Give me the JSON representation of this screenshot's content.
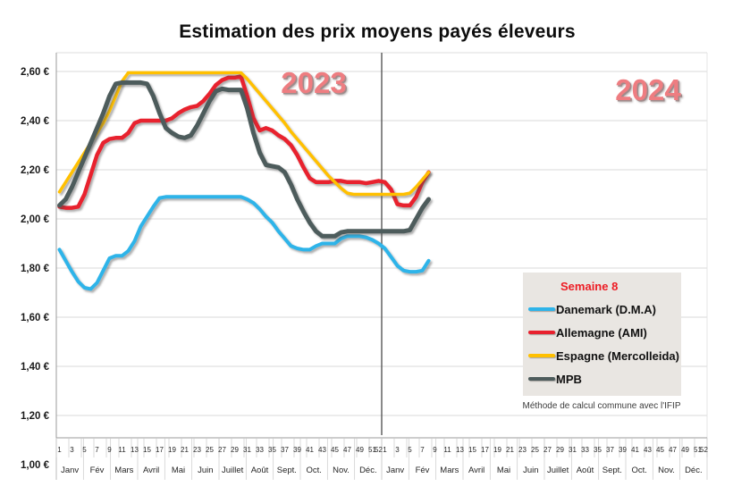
{
  "title": "Estimation des prix moyens payés éleveurs",
  "year_labels": [
    "2023",
    "2024"
  ],
  "legend": {
    "header": "Semaine 8",
    "items": [
      {
        "label": "Danemark (D.M.A)",
        "color": "#2fb4e9"
      },
      {
        "label": "Allemagne (AMI)",
        "color": "#e8212e"
      },
      {
        "label": "Espagne (Mercolleida)",
        "color": "#ffc000"
      },
      {
        "label": "MPB",
        "color": "#4e5c5c"
      }
    ]
  },
  "footnote": "Méthode de calcul commune avec l'IFIP",
  "chart_data": {
    "type": "line",
    "title": "Estimation des prix moyens payés éleveurs",
    "x_unit": "semaine",
    "ylim": [
      1.0,
      2.6
    ],
    "grid": true,
    "legend_position": "right-bottom",
    "y_ticks": [
      {
        "label": "2,60 €",
        "value": 2.6
      },
      {
        "label": "2,40 €",
        "value": 2.4
      },
      {
        "label": "2,20 €",
        "value": 2.2
      },
      {
        "label": "2,00 €",
        "value": 2.0
      },
      {
        "label": "1,80 €",
        "value": 1.8
      },
      {
        "label": "1,60 €",
        "value": 1.6
      },
      {
        "label": "1,40 €",
        "value": 1.4
      },
      {
        "label": "1,20 €",
        "value": 1.2
      },
      {
        "label": "1,00 €",
        "value": 1.0
      }
    ],
    "week_tick_labels": [
      1,
      3,
      5,
      7,
      9,
      11,
      13,
      15,
      17,
      19,
      21,
      23,
      25,
      27,
      29,
      31,
      33,
      35,
      37,
      39,
      41,
      43,
      45,
      47,
      49,
      51,
      52
    ],
    "months": [
      "Janv",
      "Fév",
      "Mars",
      "Avril",
      "Mai",
      "Juin",
      "Juillet",
      "Août",
      "Sept.",
      "Oct.",
      "Nov.",
      "Déc."
    ],
    "years": [
      {
        "label": "2023",
        "weeks": 52
      },
      {
        "label": "2024",
        "weeks": 52,
        "data_through_week": 8
      }
    ],
    "divider_between_years": true,
    "series": [
      {
        "name": "Danemark (D.M.A)",
        "color": "#2fb4e9",
        "stroke_width": 4,
        "values_2023": [
          1.875,
          1.83,
          1.785,
          1.745,
          1.72,
          1.715,
          1.74,
          1.79,
          1.84,
          1.85,
          1.85,
          1.87,
          1.91,
          1.97,
          2.01,
          2.05,
          2.085,
          2.09,
          2.09,
          2.09,
          2.09,
          2.09,
          2.09,
          2.09,
          2.09,
          2.09,
          2.09,
          2.09,
          2.09,
          2.09,
          2.08,
          2.065,
          2.04,
          2.01,
          1.985,
          1.95,
          1.92,
          1.89,
          1.88,
          1.875,
          1.875,
          1.89,
          1.9,
          1.9,
          1.9,
          1.92,
          1.93,
          1.93,
          1.93,
          1.925,
          1.915,
          1.9
        ],
        "values_2024": [
          1.88,
          1.845,
          1.81,
          1.79,
          1.785,
          1.785,
          1.79,
          1.83
        ]
      },
      {
        "name": "Allemagne (AMI)",
        "color": "#e8212e",
        "stroke_width": 4.5,
        "values_2023": [
          2.05,
          2.045,
          2.045,
          2.05,
          2.1,
          2.18,
          2.26,
          2.31,
          2.325,
          2.33,
          2.33,
          2.35,
          2.39,
          2.4,
          2.4,
          2.4,
          2.4,
          2.4,
          2.41,
          2.43,
          2.445,
          2.455,
          2.46,
          2.48,
          2.51,
          2.545,
          2.565,
          2.575,
          2.575,
          2.58,
          2.5,
          2.41,
          2.36,
          2.37,
          2.36,
          2.34,
          2.325,
          2.3,
          2.26,
          2.21,
          2.165,
          2.15,
          2.15,
          2.15,
          2.155,
          2.155,
          2.15,
          2.15,
          2.15,
          2.145,
          2.15,
          2.155
        ],
        "values_2024": [
          2.15,
          2.12,
          2.06,
          2.055,
          2.055,
          2.09,
          2.15,
          2.19
        ]
      },
      {
        "name": "Espagne (Mercolleida)",
        "color": "#ffc000",
        "stroke_width": 3.5,
        "values_2023": [
          2.11,
          2.15,
          2.19,
          2.23,
          2.27,
          2.31,
          2.35,
          2.39,
          2.44,
          2.5,
          2.56,
          2.595,
          2.595,
          2.595,
          2.595,
          2.595,
          2.595,
          2.595,
          2.595,
          2.595,
          2.595,
          2.595,
          2.595,
          2.595,
          2.595,
          2.595,
          2.595,
          2.595,
          2.595,
          2.595,
          2.57,
          2.54,
          2.51,
          2.48,
          2.45,
          2.42,
          2.39,
          2.355,
          2.325,
          2.295,
          2.265,
          2.235,
          2.205,
          2.175,
          2.15,
          2.125,
          2.105,
          2.1,
          2.1,
          2.1,
          2.1,
          2.1
        ],
        "values_2024": [
          2.1,
          2.1,
          2.1,
          2.1,
          2.105,
          2.13,
          2.16,
          2.19
        ]
      },
      {
        "name": "MPB",
        "color": "#4e5c5c",
        "stroke_width": 5,
        "values_2023": [
          2.055,
          2.08,
          2.13,
          2.19,
          2.25,
          2.31,
          2.37,
          2.43,
          2.5,
          2.55,
          2.555,
          2.555,
          2.555,
          2.555,
          2.55,
          2.5,
          2.43,
          2.37,
          2.35,
          2.335,
          2.33,
          2.34,
          2.38,
          2.43,
          2.48,
          2.52,
          2.53,
          2.525,
          2.525,
          2.525,
          2.45,
          2.35,
          2.27,
          2.22,
          2.215,
          2.21,
          2.19,
          2.14,
          2.08,
          2.03,
          1.985,
          1.95,
          1.93,
          1.93,
          1.93,
          1.945,
          1.95,
          1.95,
          1.95,
          1.95,
          1.95,
          1.95
        ],
        "values_2024": [
          1.95,
          1.95,
          1.95,
          1.95,
          1.955,
          2.0,
          2.045,
          2.08
        ]
      }
    ]
  }
}
